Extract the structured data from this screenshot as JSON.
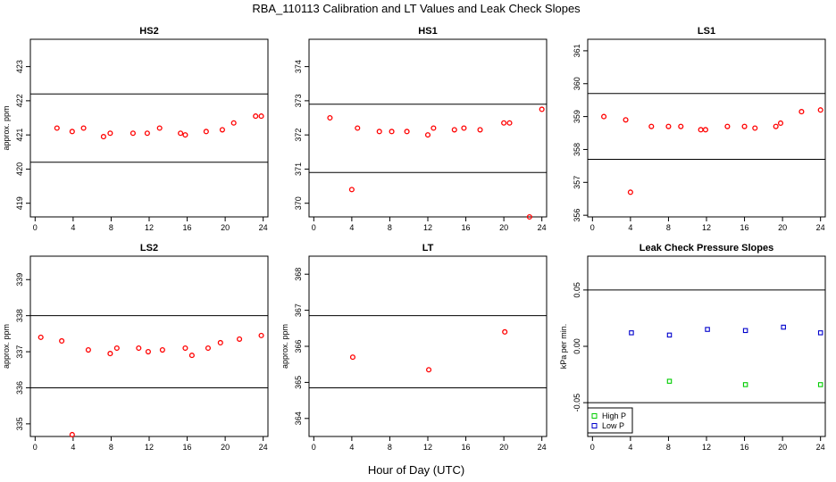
{
  "title": "RBA_110113  Calibration and LT Values and Leak Check Slopes",
  "xlabel": "Hour of Day (UTC)",
  "chart_data": [
    {
      "type": "scatter",
      "title": "HS2",
      "ylabel": "approx. ppm",
      "xlim": [
        -0.5,
        24.5
      ],
      "ylim": [
        418.6,
        423.8
      ],
      "xticks": [
        0,
        4,
        8,
        12,
        16,
        20,
        24
      ],
      "yticks": [
        419,
        420,
        421,
        422,
        423
      ],
      "hlines": [
        420.2,
        422.2
      ],
      "color": "#ff0000",
      "points": [
        [
          2.3,
          421.2
        ],
        [
          3.9,
          421.1
        ],
        [
          5.1,
          421.2
        ],
        [
          7.2,
          420.95
        ],
        [
          7.9,
          421.05
        ],
        [
          10.3,
          421.05
        ],
        [
          11.8,
          421.05
        ],
        [
          13.1,
          421.2
        ],
        [
          15.3,
          421.05
        ],
        [
          15.8,
          421.0
        ],
        [
          18.0,
          421.1
        ],
        [
          19.7,
          421.15
        ],
        [
          20.9,
          421.35
        ],
        [
          23.2,
          421.55
        ],
        [
          23.8,
          421.55
        ]
      ]
    },
    {
      "type": "scatter",
      "title": "HS1",
      "ylabel": "",
      "xlim": [
        -0.5,
        24.5
      ],
      "ylim": [
        369.6,
        374.8
      ],
      "xticks": [
        0,
        4,
        8,
        12,
        16,
        20,
        24
      ],
      "yticks": [
        370,
        371,
        372,
        373,
        374
      ],
      "hlines": [
        370.9,
        372.9
      ],
      "color": "#ff0000",
      "points": [
        [
          1.7,
          372.5
        ],
        [
          4.0,
          370.4
        ],
        [
          4.6,
          372.2
        ],
        [
          6.9,
          372.1
        ],
        [
          8.2,
          372.1
        ],
        [
          9.8,
          372.1
        ],
        [
          12.0,
          372.0
        ],
        [
          12.6,
          372.2
        ],
        [
          14.8,
          372.15
        ],
        [
          15.8,
          372.2
        ],
        [
          17.5,
          372.15
        ],
        [
          20.0,
          372.35
        ],
        [
          20.6,
          372.35
        ],
        [
          22.7,
          369.6
        ],
        [
          24.0,
          372.75
        ]
      ]
    },
    {
      "type": "scatter",
      "title": "LS1",
      "ylabel": "",
      "xlim": [
        -0.5,
        24.5
      ],
      "ylim": [
        355.95,
        361.35
      ],
      "xticks": [
        0,
        4,
        8,
        12,
        16,
        20,
        24
      ],
      "yticks": [
        356,
        357,
        358,
        359,
        360,
        361
      ],
      "hlines": [
        357.7,
        359.7
      ],
      "color": "#ff0000",
      "points": [
        [
          1.2,
          359.0
        ],
        [
          3.5,
          358.9
        ],
        [
          4.0,
          356.7
        ],
        [
          6.2,
          358.7
        ],
        [
          8.0,
          358.7
        ],
        [
          9.3,
          358.7
        ],
        [
          11.4,
          358.6
        ],
        [
          11.9,
          358.6
        ],
        [
          14.2,
          358.7
        ],
        [
          16.0,
          358.7
        ],
        [
          17.1,
          358.65
        ],
        [
          19.3,
          358.7
        ],
        [
          19.8,
          358.8
        ],
        [
          22.0,
          359.15
        ],
        [
          24.0,
          359.2
        ]
      ]
    },
    {
      "type": "scatter",
      "title": "LS2",
      "ylabel": "approx. ppm",
      "xlim": [
        -0.5,
        24.5
      ],
      "ylim": [
        334.65,
        339.65
      ],
      "xticks": [
        0,
        4,
        8,
        12,
        16,
        20,
        24
      ],
      "yticks": [
        335,
        336,
        337,
        338,
        339
      ],
      "hlines": [
        336.0,
        338.0
      ],
      "color": "#ff0000",
      "points": [
        [
          0.6,
          337.4
        ],
        [
          2.8,
          337.3
        ],
        [
          3.9,
          334.7
        ],
        [
          5.6,
          337.05
        ],
        [
          7.9,
          336.95
        ],
        [
          8.6,
          337.1
        ],
        [
          10.9,
          337.1
        ],
        [
          11.9,
          337.0
        ],
        [
          13.4,
          337.05
        ],
        [
          15.8,
          337.1
        ],
        [
          16.5,
          336.9
        ],
        [
          18.2,
          337.1
        ],
        [
          19.5,
          337.25
        ],
        [
          21.5,
          337.35
        ],
        [
          23.8,
          337.45
        ]
      ]
    },
    {
      "type": "scatter",
      "title": "LT",
      "ylabel": "approx. ppm",
      "xlim": [
        -0.5,
        24.5
      ],
      "ylim": [
        363.5,
        368.5
      ],
      "xticks": [
        0,
        4,
        8,
        12,
        16,
        20,
        24
      ],
      "yticks": [
        364,
        365,
        366,
        367,
        368
      ],
      "hlines": [
        364.85,
        366.85
      ],
      "color": "#ff0000",
      "points": [
        [
          4.1,
          365.7
        ],
        [
          12.1,
          365.35
        ],
        [
          20.1,
          366.4
        ]
      ]
    },
    {
      "type": "scatter",
      "title": "Leak Check Pressure Slopes",
      "ylabel": "kPa per min.",
      "xlim": [
        -0.5,
        24.5
      ],
      "ylim": [
        -0.08,
        0.08
      ],
      "xticks": [
        0,
        4,
        8,
        12,
        16,
        20,
        24
      ],
      "yticks": [
        -0.05,
        0.0,
        0.05
      ],
      "ytick_labels": [
        "-0.05",
        "0.00",
        "0.05"
      ],
      "hlines": [
        -0.05,
        0.05
      ],
      "series": [
        {
          "name": "High P",
          "color": "#00cc00",
          "marker": "square",
          "points": [
            [
              8.1,
              -0.031
            ],
            [
              16.1,
              -0.034
            ],
            [
              24.0,
              -0.034
            ]
          ]
        },
        {
          "name": "Low P",
          "color": "#0000cc",
          "marker": "square",
          "points": [
            [
              4.1,
              0.012
            ],
            [
              8.1,
              0.01
            ],
            [
              12.1,
              0.015
            ],
            [
              16.1,
              0.014
            ],
            [
              20.1,
              0.017
            ],
            [
              24.0,
              0.012
            ]
          ]
        }
      ],
      "legend": "bottom-left"
    }
  ]
}
